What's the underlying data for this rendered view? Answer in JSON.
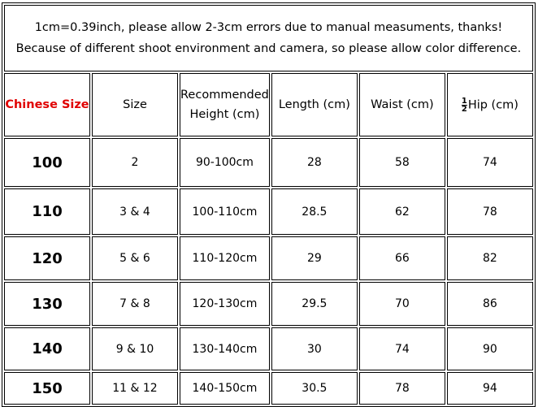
{
  "notice": "1cm=0.39inch, please allow 2-3cm errors due to manual measuments, thanks! Because of different shoot environment and camera, so please allow color difference.",
  "header": {
    "chinese_size": "Chinese Size",
    "size": "Size",
    "height_line1": "Recommended",
    "height_line2": "Height (cm)",
    "length": "Length (cm)",
    "waist": "Waist (cm)",
    "hip_num": "1",
    "hip_den": "2",
    "hip": "Hip (cm)"
  },
  "accent_color": "#e00000",
  "rows": [
    {
      "chinese_size": "100",
      "size": "2",
      "height": "90-100cm",
      "length": "28",
      "waist": "58",
      "hip": "74"
    },
    {
      "chinese_size": "110",
      "size": "3 & 4",
      "height": "100-110cm",
      "length": "28.5",
      "waist": "62",
      "hip": "78"
    },
    {
      "chinese_size": "120",
      "size": "5 & 6",
      "height": "110-120cm",
      "length": "29",
      "waist": "66",
      "hip": "82"
    },
    {
      "chinese_size": "130",
      "size": "7 & 8",
      "height": "120-130cm",
      "length": "29.5",
      "waist": "70",
      "hip": "86"
    },
    {
      "chinese_size": "140",
      "size": "9 & 10",
      "height": "130-140cm",
      "length": "30",
      "waist": "74",
      "hip": "90"
    },
    {
      "chinese_size": "150",
      "size": "11 & 12",
      "height": "140-150cm",
      "length": "30.5",
      "waist": "78",
      "hip": "94"
    }
  ]
}
